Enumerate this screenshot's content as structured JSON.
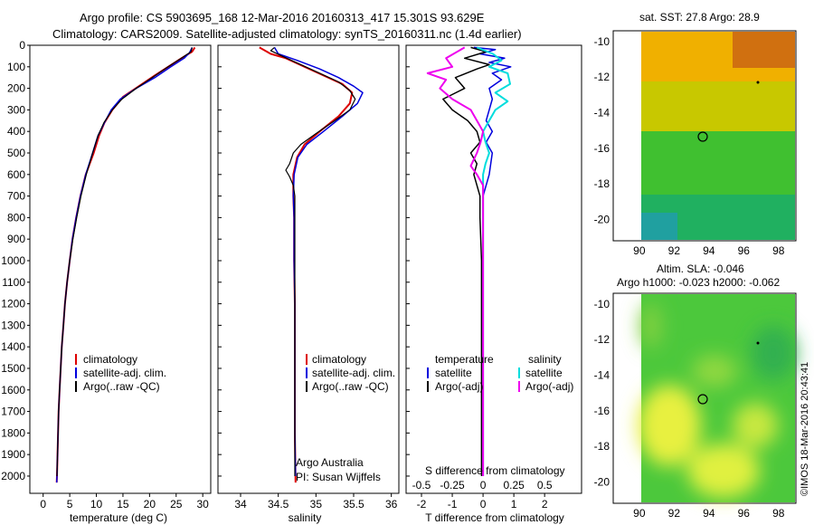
{
  "title_line1": "Argo profile: CS 5903695_168 12-Mar-2016 20160313_417 15.301S 93.629E",
  "title_line2": "Climatology: CARS2009. Satellite-adjusted climatology: synTS_20160311.nc (1.4d earlier)",
  "colors": {
    "clim": "#dd0000",
    "sat": "#0000dd",
    "argo": "#000000",
    "sat_s": "#00dddd",
    "argo_s": "#ee00ee"
  },
  "chart_data": [
    {
      "type": "line",
      "xlabel": "temperature (deg C)",
      "xticks": [
        0,
        5,
        10,
        15,
        20,
        25,
        30
      ],
      "xlim": [
        -2.5,
        31.5
      ],
      "ylim": [
        2080,
        0
      ],
      "yticks": [
        0,
        100,
        200,
        300,
        400,
        500,
        600,
        700,
        800,
        900,
        1000,
        1100,
        1200,
        1300,
        1400,
        1500,
        1600,
        1700,
        1800,
        1900,
        2000
      ],
      "legend": [
        "climatology",
        "satellite-adj. clim.",
        "Argo(..raw -QC)"
      ],
      "series": [
        {
          "name": "climatology",
          "values": [
            [
              28.5,
              10
            ],
            [
              28,
              30
            ],
            [
              26,
              60
            ],
            [
              23.5,
              100
            ],
            [
              21,
              140
            ],
            [
              18,
              190
            ],
            [
              15,
              240
            ],
            [
              13,
              300
            ],
            [
              11.5,
              360
            ],
            [
              10.5,
              420
            ],
            [
              9.5,
              500
            ],
            [
              8,
              600
            ],
            [
              7,
              700
            ],
            [
              6.2,
              800
            ],
            [
              5.5,
              900
            ],
            [
              5,
              1000
            ],
            [
              4.5,
              1100
            ],
            [
              4.1,
              1200
            ],
            [
              3.8,
              1300
            ],
            [
              3.5,
              1400
            ],
            [
              3.3,
              1500
            ],
            [
              3.1,
              1600
            ],
            [
              2.9,
              1700
            ],
            [
              2.8,
              1800
            ],
            [
              2.7,
              1900
            ],
            [
              2.6,
              2000
            ],
            [
              2.55,
              2030
            ]
          ]
        },
        {
          "name": "satellite-adj. clim.",
          "values": [
            [
              28,
              10
            ],
            [
              27.5,
              35
            ],
            [
              26.5,
              60
            ],
            [
              24,
              100
            ],
            [
              21,
              150
            ],
            [
              17.5,
              200
            ],
            [
              14.5,
              250
            ],
            [
              12.8,
              300
            ],
            [
              11.5,
              360
            ],
            [
              10.3,
              420
            ],
            [
              9.3,
              500
            ],
            [
              8,
              600
            ],
            [
              7,
              700
            ],
            [
              6.2,
              800
            ],
            [
              5.5,
              900
            ],
            [
              5,
              1000
            ],
            [
              4.5,
              1100
            ],
            [
              4.1,
              1200
            ],
            [
              3.8,
              1300
            ],
            [
              3.5,
              1400
            ],
            [
              3.3,
              1500
            ],
            [
              3.1,
              1600
            ],
            [
              2.9,
              1700
            ],
            [
              2.8,
              1800
            ],
            [
              2.7,
              1900
            ],
            [
              2.6,
              2000
            ],
            [
              2.55,
              2030
            ]
          ]
        },
        {
          "name": "Argo(..raw -QC)",
          "values": [
            [
              28,
              10
            ],
            [
              27.8,
              30
            ],
            [
              26,
              60
            ],
            [
              23.5,
              100
            ],
            [
              20.5,
              150
            ],
            [
              17.5,
              200
            ],
            [
              14.8,
              250
            ],
            [
              13,
              300
            ],
            [
              11.4,
              360
            ],
            [
              10.3,
              420
            ],
            [
              9.3,
              500
            ],
            [
              8.1,
              600
            ],
            [
              7.1,
              700
            ],
            [
              6.3,
              800
            ],
            [
              5.6,
              900
            ],
            [
              5,
              1000
            ],
            [
              4.5,
              1100
            ],
            [
              4.1,
              1200
            ],
            [
              3.8,
              1300
            ],
            [
              3.5,
              1400
            ],
            [
              3.3,
              1500
            ],
            [
              3.1,
              1600
            ],
            [
              2.9,
              1700
            ],
            [
              2.8,
              1800
            ],
            [
              2.7,
              1900
            ],
            [
              2.6,
              2000
            ]
          ]
        }
      ]
    },
    {
      "type": "line",
      "xlabel": "salinity",
      "xticks": [
        34,
        34.5,
        35,
        35.5,
        36
      ],
      "xlim": [
        33.7,
        36.1
      ],
      "ylim": [
        2080,
        0
      ],
      "legend": [
        "climatology",
        "satellite-adj. clim.",
        "Argo(..raw -QC)"
      ],
      "annotation": [
        "Argo Australia",
        "PI: Susan Wijffels"
      ],
      "series": [
        {
          "name": "climatology",
          "values": [
            [
              34.25,
              10
            ],
            [
              34.4,
              40
            ],
            [
              34.6,
              60
            ],
            [
              34.85,
              100
            ],
            [
              35.1,
              140
            ],
            [
              35.35,
              180
            ],
            [
              35.48,
              220
            ],
            [
              35.45,
              270
            ],
            [
              35.3,
              330
            ],
            [
              35.05,
              400
            ],
            [
              34.85,
              460
            ],
            [
              34.75,
              520
            ],
            [
              34.7,
              600
            ],
            [
              34.7,
              700
            ],
            [
              34.71,
              800
            ],
            [
              34.71,
              1000
            ],
            [
              34.72,
              1200
            ],
            [
              34.72,
              1500
            ],
            [
              34.72,
              1800
            ],
            [
              34.73,
              2030
            ]
          ]
        },
        {
          "name": "satellite-adj. clim.",
          "values": [
            [
              34.45,
              10
            ],
            [
              34.5,
              40
            ],
            [
              34.75,
              70
            ],
            [
              35.05,
              110
            ],
            [
              35.3,
              150
            ],
            [
              35.5,
              190
            ],
            [
              35.62,
              220
            ],
            [
              35.55,
              270
            ],
            [
              35.35,
              330
            ],
            [
              35.1,
              400
            ],
            [
              34.88,
              460
            ],
            [
              34.76,
              520
            ],
            [
              34.71,
              600
            ],
            [
              34.7,
              700
            ],
            [
              34.71,
              800
            ],
            [
              34.71,
              1000
            ],
            [
              34.72,
              1200
            ],
            [
              34.72,
              1500
            ],
            [
              34.72,
              1800
            ],
            [
              34.73,
              2000
            ]
          ]
        },
        {
          "name": "Argo(..raw -QC)",
          "values": [
            [
              34.45,
              10
            ],
            [
              34.4,
              25
            ],
            [
              34.55,
              50
            ],
            [
              34.8,
              90
            ],
            [
              35.05,
              130
            ],
            [
              35.3,
              170
            ],
            [
              35.45,
              210
            ],
            [
              35.52,
              250
            ],
            [
              35.45,
              300
            ],
            [
              35.25,
              350
            ],
            [
              35,
              410
            ],
            [
              34.8,
              460
            ],
            [
              34.7,
              500
            ],
            [
              34.65,
              550
            ],
            [
              34.6,
              580
            ],
            [
              34.65,
              610
            ],
            [
              34.7,
              650
            ],
            [
              34.72,
              700
            ],
            [
              34.72,
              800
            ],
            [
              34.72,
              1000
            ],
            [
              34.72,
              1200
            ],
            [
              34.72,
              1500
            ],
            [
              34.72,
              1800
            ],
            [
              34.72,
              2000
            ]
          ]
        }
      ]
    },
    {
      "type": "line",
      "xlabel": "T difference from climatology",
      "xlabel_top": "S difference from climatology",
      "xticks": [
        -2,
        -1,
        0,
        1,
        2
      ],
      "xticks_s": [
        "-0.5",
        "-0.25",
        "0",
        "0.25",
        "0.5"
      ],
      "xlim": [
        -2.5,
        3.2
      ],
      "ylim": [
        2080,
        0
      ],
      "legend_t_title": "temperature",
      "legend_s_title": "salinity",
      "legend_t": [
        "satellite",
        "Argo(-adj)"
      ],
      "legend_s": [
        "satellite",
        "Argo(-adj)"
      ],
      "series": [
        {
          "name": "temperature satellite",
          "values": [
            [
              -0.3,
              10
            ],
            [
              0.4,
              20
            ],
            [
              -0.1,
              40
            ],
            [
              0.7,
              60
            ],
            [
              0.2,
              80
            ],
            [
              0.9,
              100
            ],
            [
              0.3,
              130
            ],
            [
              0.6,
              160
            ],
            [
              0.2,
              200
            ],
            [
              0.3,
              250
            ],
            [
              0.2,
              300
            ],
            [
              0.1,
              350
            ],
            [
              0.3,
              400
            ],
            [
              0.1,
              450
            ],
            [
              0.3,
              500
            ],
            [
              0.2,
              600
            ],
            [
              0,
              700
            ],
            [
              0,
              800
            ],
            [
              0,
              1000
            ],
            [
              0,
              1500
            ],
            [
              0,
              2000
            ]
          ]
        },
        {
          "name": "temperature Argo(-adj)",
          "values": [
            [
              -0.4,
              10
            ],
            [
              0.1,
              30
            ],
            [
              -0.6,
              60
            ],
            [
              0.2,
              90
            ],
            [
              -0.2,
              110
            ],
            [
              -0.9,
              150
            ],
            [
              -0.6,
              200
            ],
            [
              -1.3,
              250
            ],
            [
              -1,
              300
            ],
            [
              -0.5,
              350
            ],
            [
              -0.2,
              400
            ],
            [
              -0.1,
              450
            ],
            [
              -0.4,
              500
            ],
            [
              -0.2,
              550
            ],
            [
              -0.3,
              600
            ],
            [
              -0.2,
              650
            ],
            [
              -0.1,
              700
            ],
            [
              -0.1,
              800
            ],
            [
              -0.05,
              1000
            ],
            [
              -0.05,
              1200
            ],
            [
              -0.05,
              1500
            ],
            [
              -0.05,
              2000
            ]
          ]
        },
        {
          "name": "salinity satellite",
          "values": [
            [
              -0.05,
              10
            ],
            [
              0.08,
              40
            ],
            [
              0.15,
              70
            ],
            [
              0.05,
              100
            ],
            [
              0.2,
              130
            ],
            [
              0.22,
              180
            ],
            [
              0.1,
              220
            ],
            [
              0.2,
              260
            ],
            [
              0.1,
              300
            ],
            [
              0.05,
              350
            ],
            [
              0,
              400
            ],
            [
              0.02,
              450
            ],
            [
              0.05,
              500
            ],
            [
              0.02,
              550
            ],
            [
              0,
              600
            ],
            [
              0,
              700
            ],
            [
              0,
              800
            ],
            [
              0,
              1000
            ],
            [
              0,
              1500
            ],
            [
              0,
              2000
            ]
          ]
        },
        {
          "name": "salinity Argo(-adj)",
          "values": [
            [
              -0.15,
              10
            ],
            [
              -0.3,
              60
            ],
            [
              -0.25,
              100
            ],
            [
              -0.45,
              130
            ],
            [
              -0.3,
              160
            ],
            [
              -0.35,
              200
            ],
            [
              -0.25,
              250
            ],
            [
              -0.1,
              300
            ],
            [
              -0.05,
              350
            ],
            [
              0,
              400
            ],
            [
              -0.02,
              450
            ],
            [
              -0.05,
              500
            ],
            [
              -0.1,
              560
            ],
            [
              -0.05,
              600
            ],
            [
              0,
              650
            ],
            [
              0,
              700
            ],
            [
              0,
              800
            ],
            [
              0,
              1000
            ],
            [
              0,
              1500
            ],
            [
              0,
              2000
            ]
          ]
        }
      ]
    },
    {
      "type": "heatmap",
      "title": "sat. SST: 27.8 Argo: 28.9",
      "xticks": [
        90,
        92,
        94,
        96,
        98
      ],
      "yticks": [
        -10,
        -12,
        -14,
        -16,
        -18,
        -20
      ],
      "xlim": [
        88.5,
        99
      ],
      "ylim": [
        -21.2,
        -9.4
      ],
      "marker": [
        93.63,
        -15.3
      ]
    },
    {
      "type": "heatmap",
      "title_line1": "Altim. SLA: -0.046",
      "title_line2": "Argo h1000: -0.023 h2000: -0.062",
      "xticks": [
        90,
        92,
        94,
        96,
        98
      ],
      "yticks": [
        -10,
        -12,
        -14,
        -16,
        -18,
        -20
      ],
      "xlim": [
        88.5,
        99
      ],
      "ylim": [
        -21.2,
        -9.4
      ],
      "marker": [
        93.63,
        -15.3
      ]
    }
  ],
  "credit": "©IMOS 18-Mar-2016 20:43:41"
}
